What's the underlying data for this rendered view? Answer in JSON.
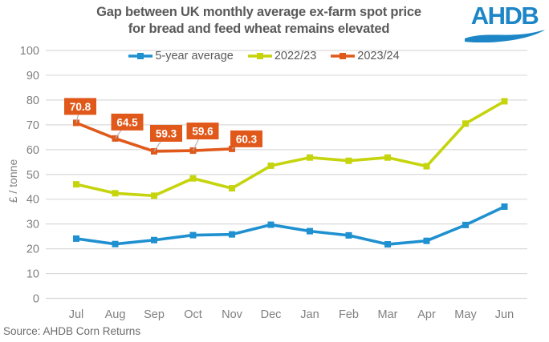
{
  "header": {
    "title_line1": "Gap between UK monthly average ex-farm spot price",
    "title_line2": "for bread and feed wheat remains elevated",
    "logo_text": "AHDB"
  },
  "source_note": "Source: AHDB Corn Returns",
  "colors": {
    "series_blue": "#1f90d0",
    "series_yellow_green": "#c5d40d",
    "series_orange": "#e0591b",
    "logo_blue": "#1c86c7",
    "title_text": "#595959",
    "axis_text": "#7f7f7f",
    "legend_text": "#595959",
    "gridline": "#d9d9d9",
    "data_label_bg": "#e0591b",
    "data_label_text": "#ffffff",
    "leader_line": "#b3b3b3"
  },
  "chart_data": {
    "type": "line",
    "title": "Gap between UK monthly average ex-farm spot price for bread and feed wheat remains elevated",
    "ylabel": "£ / tonne",
    "ylim": [
      0,
      100
    ],
    "ytick_step": 10,
    "grid": "horizontal-only",
    "legend_position": "top-center",
    "categories": [
      "Jul",
      "Aug",
      "Sep",
      "Oct",
      "Nov",
      "Dec",
      "Jan",
      "Feb",
      "Mar",
      "Apr",
      "May",
      "Jun"
    ],
    "series": [
      {
        "name": "5-year average",
        "color": "#1f90d0",
        "values": [
          24.1,
          21.9,
          23.5,
          25.5,
          25.8,
          29.7,
          27.1,
          25.4,
          21.8,
          23.2,
          29.6,
          37.0
        ]
      },
      {
        "name": "2022/23",
        "color": "#c5d40d",
        "values": [
          46.0,
          42.4,
          41.4,
          48.4,
          44.4,
          53.5,
          56.8,
          55.5,
          56.8,
          53.3,
          70.5,
          79.5
        ]
      },
      {
        "name": "2023/24",
        "color": "#e0591b",
        "values": [
          70.8,
          64.5,
          59.3,
          59.6,
          60.3
        ],
        "data_labels": [
          "70.8",
          "64.5",
          "59.3",
          "59.6",
          "60.3"
        ]
      }
    ]
  }
}
